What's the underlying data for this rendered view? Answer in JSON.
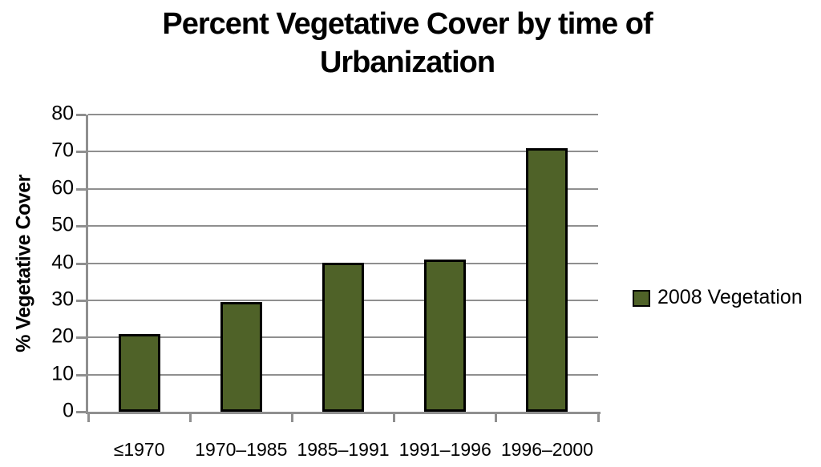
{
  "chart_data": {
    "type": "bar",
    "title": "Percent Vegetative Cover by time of Urbanization",
    "title_lines": [
      "Percent Vegetative Cover by time of",
      "Urbanization"
    ],
    "categories": [
      "≤1970",
      "1970–1985",
      "1985–1991",
      "1991–1996",
      "1996–2000"
    ],
    "series": [
      {
        "name": "2008 Vegetation",
        "values": [
          21,
          29.5,
          40,
          41,
          71
        ]
      }
    ],
    "xlabel": "",
    "ylabel": "% Vegetative Cover",
    "ylim": [
      0,
      80
    ],
    "ytick_step": 10,
    "yticks": [
      0,
      10,
      20,
      30,
      40,
      50,
      60,
      70,
      80
    ],
    "grid": true,
    "legend_position": "right",
    "colors": {
      "bar_fill": "#4F6228",
      "bar_border": "#000000",
      "gridline": "#8F8F8F",
      "axis": "#8F8F8F",
      "text": "#000000",
      "background": "#FFFFFF"
    }
  }
}
